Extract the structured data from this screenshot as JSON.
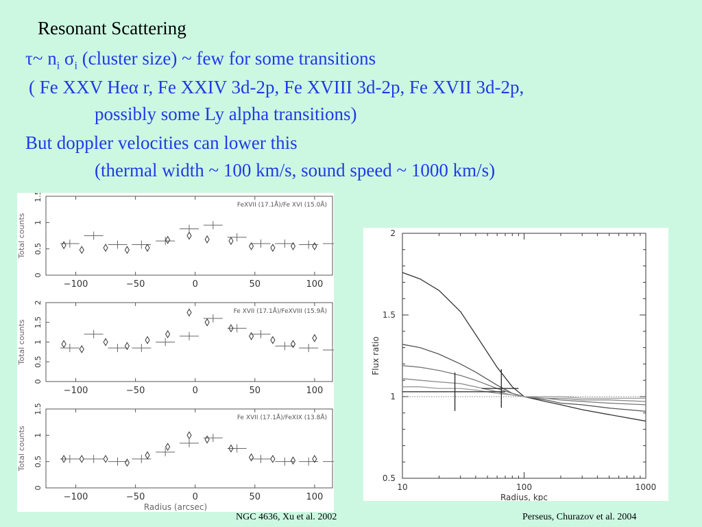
{
  "title": "Resonant Scattering",
  "lines": {
    "l1_pre": "τ~ n",
    "l1_sub1": "i",
    "l1_mid": " σ",
    "l1_sub2": "i",
    "l1_post": " (cluster size) ~ few for some transitions",
    "l2": "( Fe XXV Heα r, Fe XXIV 3d-2p, Fe XVIII 3d-2p, Fe XVII 3d-2p,",
    "l3": "possibly some Ly alpha transitions)",
    "l4": "But doppler velocities can lower this",
    "l5": "(thermal width ~ 100 km/s, sound speed ~ 1000 km/s)"
  },
  "captions": {
    "left": "NGC 4636, Xu et al. 2002",
    "right": "Perseus, Churazov et al. 2004"
  },
  "chart_data": [
    {
      "type": "scatter",
      "label": "FeXVII (17.1Å)/Fe XVI (15.0Å)",
      "ylabel": "Total counts",
      "xlim": [
        -125,
        115
      ],
      "ylim": [
        0,
        1.5
      ],
      "xticks": [
        -100,
        -50,
        0,
        50,
        100
      ],
      "yticks": [
        0,
        0.5,
        1,
        1.5
      ],
      "points": {
        "x": [
          -110,
          -95,
          -75,
          -57,
          -40,
          -23,
          -5,
          10,
          30,
          47,
          65,
          82,
          100,
          117
        ],
        "y": [
          0.57,
          0.48,
          0.52,
          0.48,
          0.52,
          0.67,
          0.75,
          0.68,
          0.65,
          0.55,
          0.52,
          0.55,
          0.55,
          0.65
        ]
      },
      "model": {
        "x": [
          -105,
          -85,
          -65,
          -45,
          -25,
          -5,
          15,
          35,
          55,
          75,
          95,
          115
        ],
        "y": [
          0.6,
          0.75,
          0.58,
          0.58,
          0.65,
          0.88,
          0.95,
          0.72,
          0.6,
          0.6,
          0.58,
          0.6
        ]
      }
    },
    {
      "type": "scatter",
      "label": "Fe XVII (17.1Å)/FeXVIII (15.9Å)",
      "ylabel": "Total counts",
      "xlim": [
        -125,
        115
      ],
      "ylim": [
        0,
        2
      ],
      "xticks": [
        -100,
        -50,
        0,
        50,
        100
      ],
      "yticks": [
        0,
        0.5,
        1,
        1.5,
        2
      ],
      "points": {
        "x": [
          -110,
          -95,
          -75,
          -57,
          -40,
          -23,
          -5,
          10,
          30,
          47,
          65,
          82,
          100,
          117
        ],
        "y": [
          0.95,
          0.82,
          1.0,
          0.9,
          1.05,
          1.2,
          1.75,
          1.5,
          1.35,
          1.15,
          1.05,
          0.95,
          1.1,
          0.8
        ]
      },
      "model": {
        "x": [
          -105,
          -85,
          -65,
          -45,
          -25,
          -5,
          15,
          35,
          55,
          75,
          95,
          115
        ],
        "y": [
          0.85,
          1.2,
          0.85,
          0.85,
          1.0,
          1.15,
          1.6,
          1.35,
          1.2,
          0.9,
          0.85,
          0.8
        ]
      }
    },
    {
      "type": "scatter",
      "label": "Fe XVII (17.1Å)/FeXIX (13.8Å)",
      "ylabel": "Total counts",
      "xlabel": "Radius (arcsec)",
      "xlim": [
        -125,
        115
      ],
      "ylim": [
        0,
        1.5
      ],
      "xticks": [
        -100,
        -50,
        0,
        50,
        100
      ],
      "yticks": [
        0,
        0.5,
        1,
        1.5
      ],
      "points": {
        "x": [
          -110,
          -95,
          -75,
          -57,
          -40,
          -23,
          -5,
          10,
          30,
          47,
          65,
          82,
          100,
          117
        ],
        "y": [
          0.55,
          0.55,
          0.55,
          0.48,
          0.62,
          0.78,
          1.0,
          0.92,
          0.75,
          0.58,
          0.55,
          0.52,
          0.55,
          0.55
        ]
      },
      "model": {
        "x": [
          -105,
          -85,
          -65,
          -45,
          -25,
          -5,
          15,
          35,
          55,
          75,
          95,
          115
        ],
        "y": [
          0.55,
          0.55,
          0.5,
          0.55,
          0.68,
          0.85,
          0.95,
          0.75,
          0.55,
          0.5,
          0.5,
          0.5
        ]
      }
    },
    {
      "type": "line",
      "xlabel": "Radius, kpc",
      "ylabel": "Flux ratio",
      "xscale": "log",
      "xlim": [
        10,
        1000
      ],
      "ylim": [
        0.5,
        2
      ],
      "xticks": [
        10,
        100,
        1000
      ],
      "yticks": [
        0.5,
        1,
        1.5,
        2
      ],
      "series": [
        {
          "x": [
            10,
            14,
            20,
            30,
            40,
            60,
            80,
            100,
            150,
            200,
            300,
            500,
            1000
          ],
          "y": [
            1.76,
            1.72,
            1.65,
            1.52,
            1.38,
            1.18,
            1.06,
            1.0,
            0.97,
            0.95,
            0.92,
            0.89,
            0.85
          ]
        },
        {
          "x": [
            10,
            14,
            20,
            30,
            40,
            60,
            80,
            100,
            150,
            200,
            300,
            500,
            1000
          ],
          "y": [
            1.32,
            1.3,
            1.26,
            1.2,
            1.15,
            1.07,
            1.02,
            1.0,
            0.98,
            0.96,
            0.95,
            0.93,
            0.91
          ]
        },
        {
          "x": [
            10,
            14,
            20,
            30,
            40,
            60,
            80,
            100,
            150,
            200,
            300,
            500,
            1000
          ],
          "y": [
            1.19,
            1.18,
            1.16,
            1.13,
            1.1,
            1.05,
            1.02,
            1.0,
            0.99,
            0.98,
            0.97,
            0.96,
            0.95
          ]
        },
        {
          "x": [
            10,
            14,
            20,
            30,
            40,
            60,
            80,
            100,
            150,
            200,
            300,
            500,
            1000
          ],
          "y": [
            1.11,
            1.1,
            1.09,
            1.08,
            1.06,
            1.03,
            1.01,
            1.0,
            0.99,
            0.99,
            0.98,
            0.98,
            0.97
          ]
        },
        {
          "x": [
            10,
            14,
            20,
            30,
            40,
            60,
            80,
            100,
            150,
            200,
            300,
            500,
            1000
          ],
          "y": [
            1.06,
            1.06,
            1.05,
            1.05,
            1.04,
            1.02,
            1.01,
            1.0,
            1.0,
            1.0,
            0.99,
            0.99,
            0.99
          ]
        }
      ],
      "data_points": [
        {
          "x": 27,
          "y": 1.03,
          "xerr": [
            10,
            70
          ]
        },
        {
          "x": 65,
          "y": 1.05,
          "xerr": [
            45,
            90
          ]
        }
      ]
    }
  ]
}
